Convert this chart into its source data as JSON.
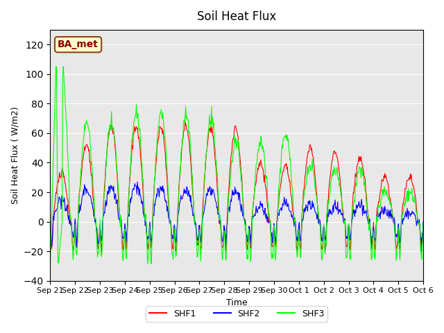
{
  "title": "Soil Heat Flux",
  "xlabel": "Time",
  "ylabel": "Soil Heat Flux ( W/m2)",
  "ylim": [
    -40,
    130
  ],
  "yticks": [
    -40,
    -20,
    0,
    20,
    40,
    60,
    80,
    100,
    120
  ],
  "legend_labels": [
    "SHF1",
    "SHF2",
    "SHF3"
  ],
  "legend_colors": [
    "red",
    "blue",
    "lime"
  ],
  "annotation_text": "BA_met",
  "annotation_bg": "#ffffcc",
  "annotation_border": "#8B4513",
  "background_color": "#e8e8e8",
  "fig_bg": "#ffffff",
  "x_tick_labels": [
    "Sep 21",
    "Sep 22",
    "Sep 23",
    "Sep 24",
    "Sep 25",
    "Sep 26",
    "Sep 27",
    "Sep 28",
    "Sep 29",
    "Sep 30",
    "Oct 1",
    "Oct 2",
    "Oct 3",
    "Oct 4",
    "Oct 5",
    "Oct 6"
  ],
  "n_days": 15,
  "points_per_day": 48
}
